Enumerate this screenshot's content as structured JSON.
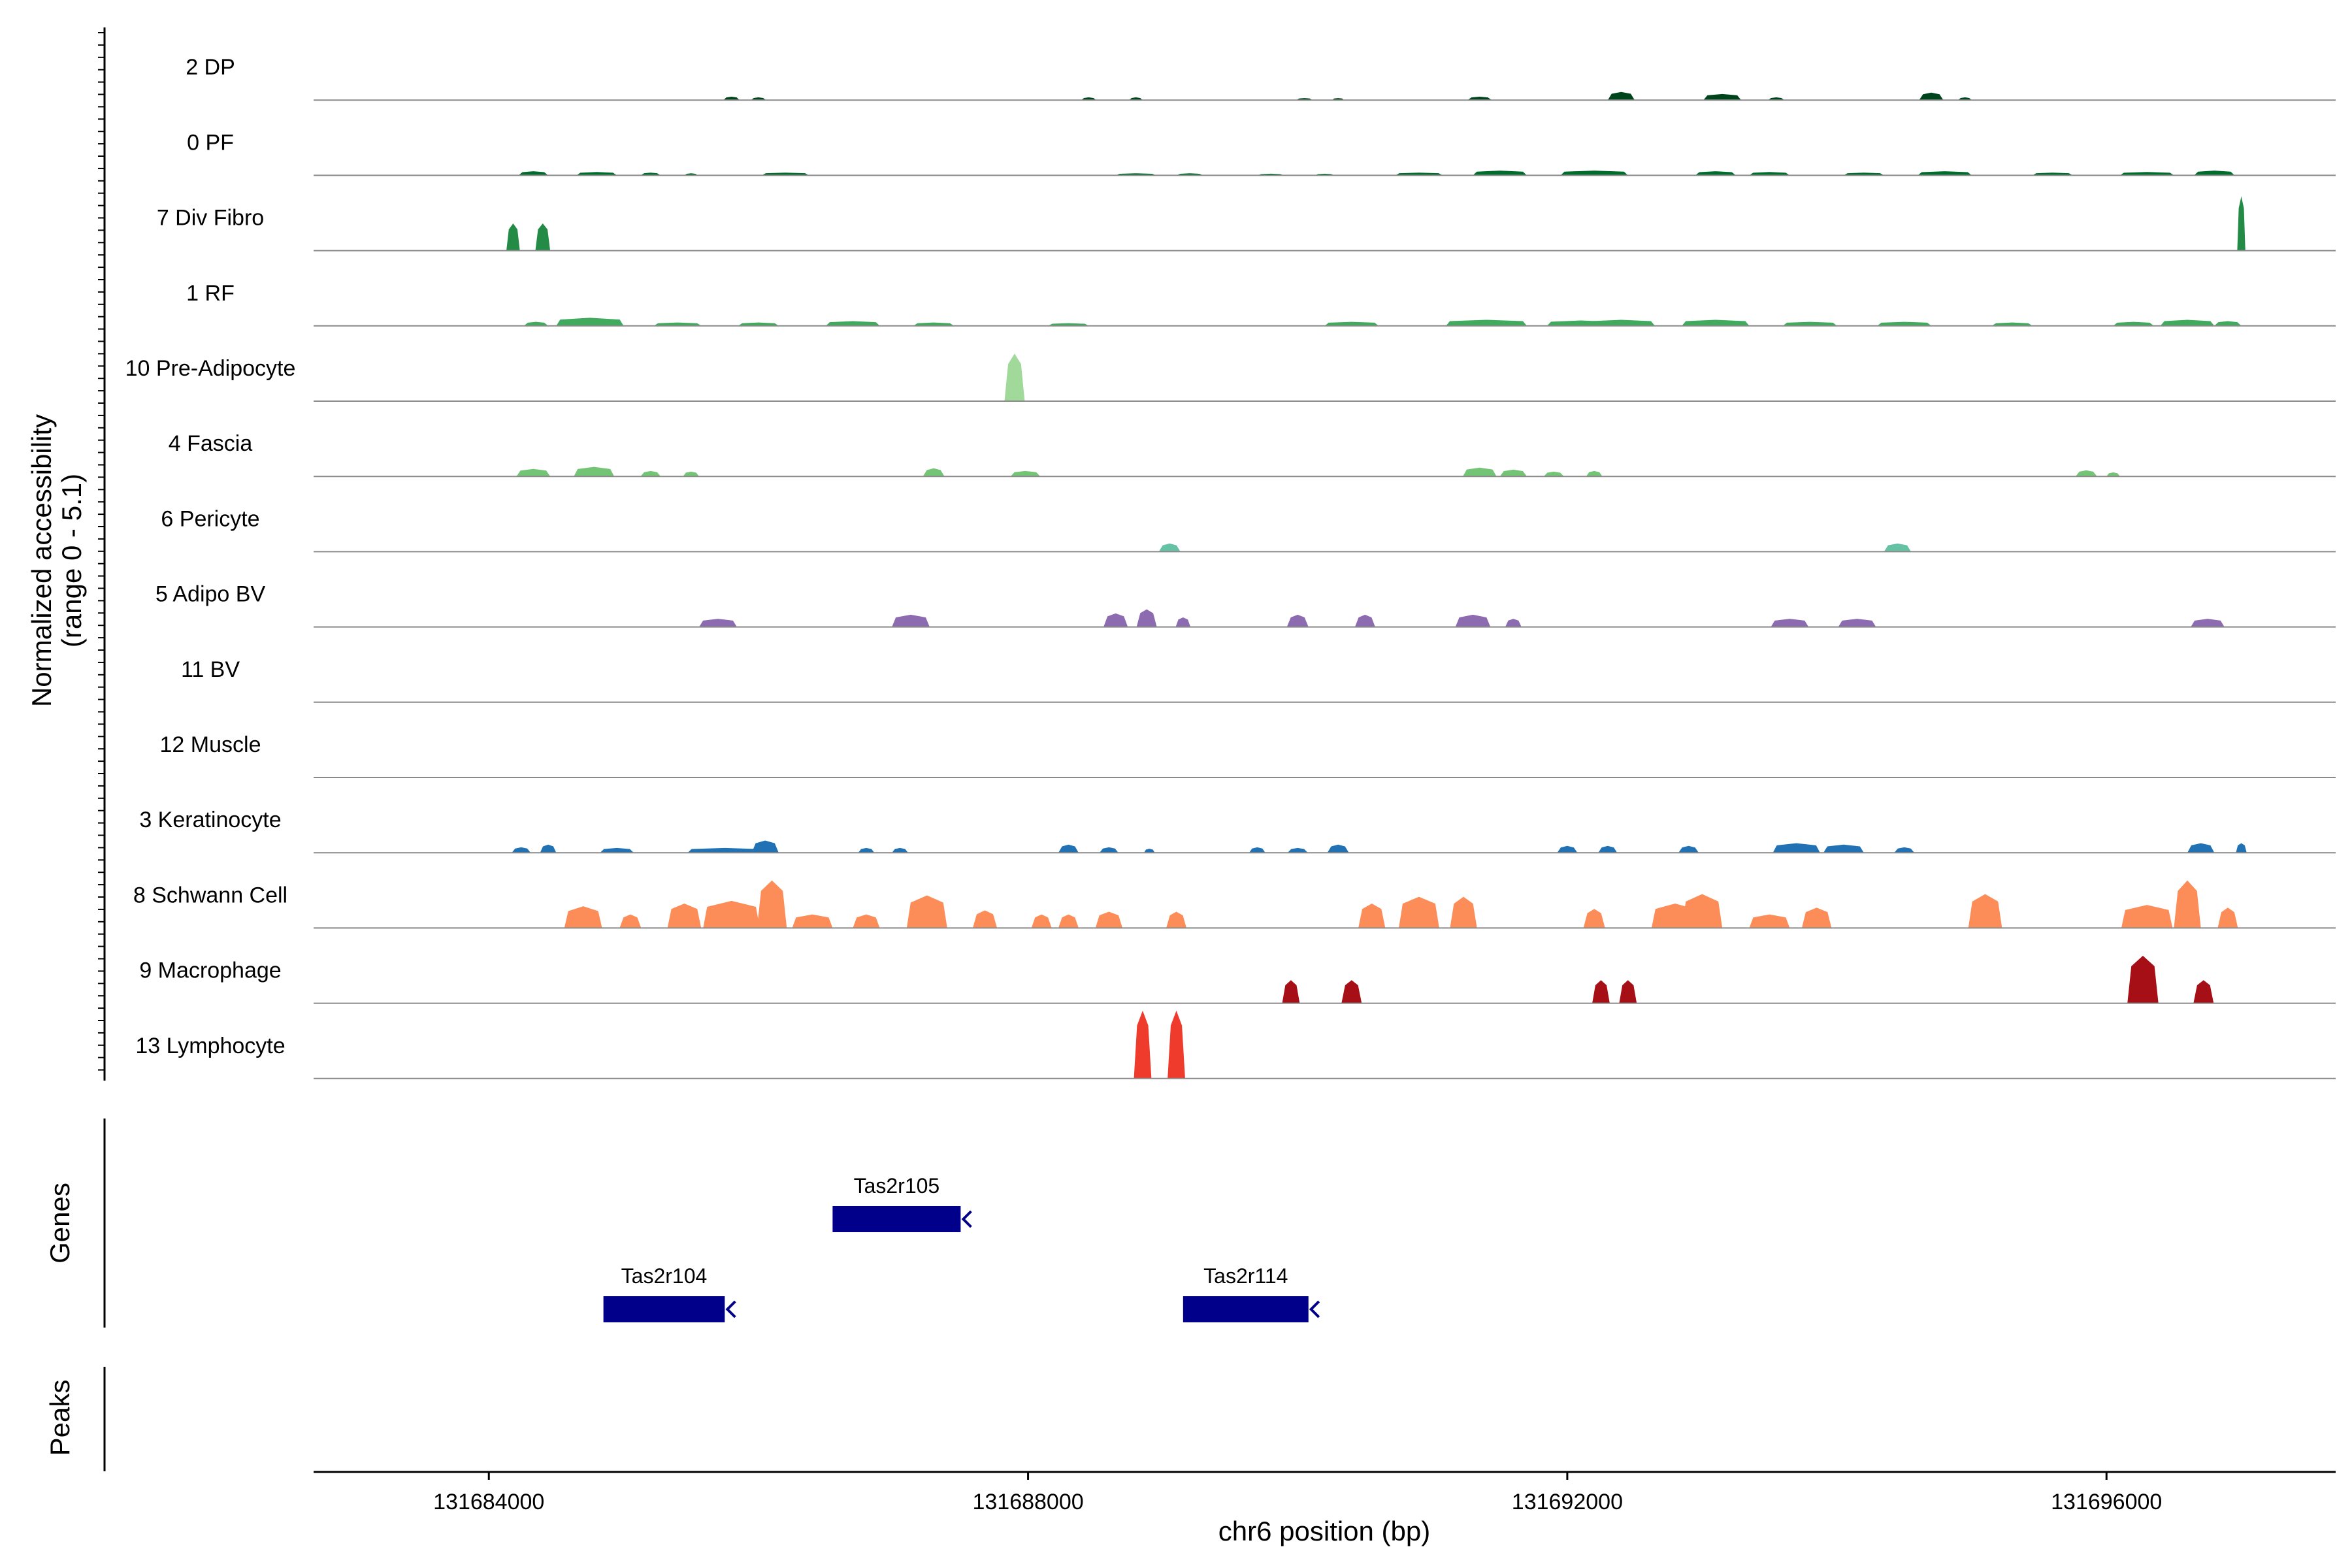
{
  "chart_data": {
    "type": "area",
    "title": "",
    "xlabel": "chr6 position (bp)",
    "ylabel": "Normalized accessibility",
    "ylabel_sub": "(range 0 - 5.1)",
    "genes_label": "Genes",
    "peaks_label": "Peaks",
    "xlim": [
      131682700,
      131697700
    ],
    "ylim": [
      0,
      5.1
    ],
    "x_ticks": [
      131684000,
      131688000,
      131692000,
      131696000
    ],
    "x_tick_labels": [
      "131684000",
      "131688000",
      "131692000",
      "131696000"
    ],
    "tracks": [
      {
        "name": "2 DP",
        "color": "#00441b",
        "peaks": [
          [
            131685800,
            0.25,
            120
          ],
          [
            131686000,
            0.2,
            110
          ],
          [
            131688450,
            0.2,
            110
          ],
          [
            131688800,
            0.2,
            100
          ],
          [
            131690050,
            0.15,
            120
          ],
          [
            131690300,
            0.15,
            90
          ],
          [
            131691350,
            0.25,
            180
          ],
          [
            131692400,
            0.6,
            200
          ],
          [
            131693150,
            0.45,
            280
          ],
          [
            131693550,
            0.2,
            120
          ],
          [
            131694700,
            0.55,
            180
          ],
          [
            131694950,
            0.2,
            100
          ]
        ]
      },
      {
        "name": "0 PF",
        "color": "#006d2c",
        "peaks": [
          [
            131684330,
            0.3,
            220
          ],
          [
            131684800,
            0.25,
            300
          ],
          [
            131685200,
            0.2,
            150
          ],
          [
            131685500,
            0.15,
            100
          ],
          [
            131686200,
            0.2,
            350
          ],
          [
            131688800,
            0.15,
            300
          ],
          [
            131689200,
            0.15,
            200
          ],
          [
            131689800,
            0.12,
            200
          ],
          [
            131690200,
            0.12,
            150
          ],
          [
            131690900,
            0.2,
            350
          ],
          [
            131691500,
            0.35,
            400
          ],
          [
            131692200,
            0.35,
            500
          ],
          [
            131693100,
            0.3,
            300
          ],
          [
            131693500,
            0.25,
            300
          ],
          [
            131694200,
            0.2,
            300
          ],
          [
            131694800,
            0.3,
            400
          ],
          [
            131695600,
            0.2,
            300
          ],
          [
            131696300,
            0.25,
            400
          ],
          [
            131696800,
            0.35,
            300
          ]
        ]
      },
      {
        "name": "7 Div Fibro",
        "color": "#238b45",
        "peaks": [
          [
            131684180,
            2.0,
            100
          ],
          [
            131684400,
            2.0,
            110
          ],
          [
            131697000,
            4.0,
            60
          ]
        ]
      },
      {
        "name": "1 RF",
        "color": "#41ab5d",
        "peaks": [
          [
            131684350,
            0.3,
            180
          ],
          [
            131684750,
            0.6,
            500
          ],
          [
            131685400,
            0.25,
            350
          ],
          [
            131686000,
            0.25,
            300
          ],
          [
            131686700,
            0.35,
            400
          ],
          [
            131687300,
            0.25,
            300
          ],
          [
            131688300,
            0.2,
            300
          ],
          [
            131690400,
            0.3,
            400
          ],
          [
            131691400,
            0.45,
            600
          ],
          [
            131692100,
            0.4,
            500
          ],
          [
            131692400,
            0.45,
            500
          ],
          [
            131693100,
            0.45,
            500
          ],
          [
            131693800,
            0.3,
            400
          ],
          [
            131694500,
            0.3,
            400
          ],
          [
            131695300,
            0.25,
            300
          ],
          [
            131696200,
            0.3,
            300
          ],
          [
            131696600,
            0.45,
            400
          ],
          [
            131696900,
            0.35,
            200
          ]
        ]
      },
      {
        "name": "10 Pre-Adipocyte",
        "color": "#a1d99b",
        "peaks": [
          [
            131687900,
            3.5,
            150
          ]
        ]
      },
      {
        "name": "4 Fascia",
        "color": "#74c476",
        "peaks": [
          [
            131684330,
            0.55,
            250
          ],
          [
            131684780,
            0.7,
            300
          ],
          [
            131685200,
            0.4,
            150
          ],
          [
            131685500,
            0.35,
            120
          ],
          [
            131687300,
            0.6,
            160
          ],
          [
            131687980,
            0.4,
            220
          ],
          [
            131691350,
            0.65,
            250
          ],
          [
            131691600,
            0.5,
            200
          ],
          [
            131691900,
            0.35,
            150
          ],
          [
            131692200,
            0.4,
            120
          ],
          [
            131695850,
            0.45,
            160
          ],
          [
            131696050,
            0.3,
            100
          ]
        ]
      },
      {
        "name": "6 Pericyte",
        "color": "#66c2a4",
        "peaks": [
          [
            131689050,
            0.6,
            160
          ],
          [
            131694450,
            0.6,
            200
          ]
        ]
      },
      {
        "name": "5 Adipo BV",
        "color": "#8c6bb1",
        "peaks": [
          [
            131685700,
            0.6,
            280
          ],
          [
            131687130,
            0.9,
            280
          ],
          [
            131688650,
            1.0,
            180
          ],
          [
            131688880,
            1.3,
            150
          ],
          [
            131689150,
            0.7,
            110
          ],
          [
            131690000,
            0.9,
            160
          ],
          [
            131690500,
            0.9,
            150
          ],
          [
            131691300,
            0.9,
            260
          ],
          [
            131691600,
            0.6,
            120
          ],
          [
            131693650,
            0.6,
            280
          ],
          [
            131694150,
            0.6,
            280
          ],
          [
            131696750,
            0.6,
            250
          ]
        ]
      },
      {
        "name": "11 BV",
        "color": "#807dba",
        "peaks": []
      },
      {
        "name": "12 Muscle",
        "color": "#6a51a3",
        "peaks": []
      },
      {
        "name": "3 Keratinocyte",
        "color": "#2171b5",
        "peaks": [
          [
            131684240,
            0.4,
            140
          ],
          [
            131684440,
            0.6,
            120
          ],
          [
            131684950,
            0.35,
            250
          ],
          [
            131685750,
            0.35,
            550
          ],
          [
            131686050,
            0.9,
            200
          ],
          [
            131686800,
            0.35,
            120
          ],
          [
            131687050,
            0.35,
            120
          ],
          [
            131688300,
            0.6,
            150
          ],
          [
            131688600,
            0.4,
            140
          ],
          [
            131688900,
            0.3,
            80
          ],
          [
            131689700,
            0.4,
            120
          ],
          [
            131690000,
            0.35,
            150
          ],
          [
            131690300,
            0.6,
            160
          ],
          [
            131692000,
            0.5,
            150
          ],
          [
            131692300,
            0.5,
            140
          ],
          [
            131692900,
            0.5,
            150
          ],
          [
            131693700,
            0.7,
            350
          ],
          [
            131694050,
            0.6,
            300
          ],
          [
            131694500,
            0.4,
            150
          ],
          [
            131696700,
            0.7,
            200
          ],
          [
            131697000,
            0.7,
            80
          ]
        ]
      },
      {
        "name": "8 Schwann Cell",
        "color": "#fc8d59",
        "peaks": [
          [
            131684700,
            1.6,
            280
          ],
          [
            131685050,
            1.0,
            160
          ],
          [
            131685450,
            1.8,
            250
          ],
          [
            131685800,
            2.0,
            420
          ],
          [
            131686100,
            3.5,
            220
          ],
          [
            131686400,
            1.0,
            300
          ],
          [
            131686800,
            1.0,
            200
          ],
          [
            131687250,
            2.4,
            300
          ],
          [
            131687680,
            1.3,
            180
          ],
          [
            131688100,
            1.0,
            150
          ],
          [
            131688300,
            1.0,
            150
          ],
          [
            131688600,
            1.2,
            200
          ],
          [
            131689100,
            1.2,
            150
          ],
          [
            131690550,
            1.8,
            200
          ],
          [
            131690900,
            2.3,
            300
          ],
          [
            131691230,
            2.3,
            200
          ],
          [
            131692200,
            1.4,
            160
          ],
          [
            131692800,
            1.8,
            350
          ],
          [
            131693000,
            2.5,
            300
          ],
          [
            131693500,
            1.0,
            300
          ],
          [
            131693850,
            1.5,
            220
          ],
          [
            131695100,
            2.5,
            250
          ],
          [
            131696300,
            1.7,
            380
          ],
          [
            131696600,
            3.5,
            200
          ],
          [
            131696900,
            1.5,
            150
          ]
        ]
      },
      {
        "name": "9 Macrophage",
        "color": "#a50f15",
        "peaks": [
          [
            131689950,
            1.7,
            130
          ],
          [
            131690400,
            1.7,
            150
          ],
          [
            131692250,
            1.7,
            130
          ],
          [
            131692450,
            1.7,
            130
          ],
          [
            131696270,
            3.5,
            230
          ],
          [
            131696720,
            1.7,
            150
          ]
        ]
      },
      {
        "name": "13 Lymphocyte",
        "color": "#ef3b2c",
        "peaks": [
          [
            131688850,
            5.0,
            130
          ],
          [
            131689100,
            5.0,
            130
          ]
        ]
      }
    ],
    "genes": [
      {
        "name": "Tas2r105",
        "start": 131686550,
        "end": 131687500,
        "row": 0,
        "strand": "-"
      },
      {
        "name": "Tas2r104",
        "start": 131684850,
        "end": 131685750,
        "row": 1,
        "strand": "-"
      },
      {
        "name": "Tas2r114",
        "start": 131689150,
        "end": 131690080,
        "row": 1,
        "strand": "-"
      }
    ],
    "gene_color": "#00008b"
  }
}
